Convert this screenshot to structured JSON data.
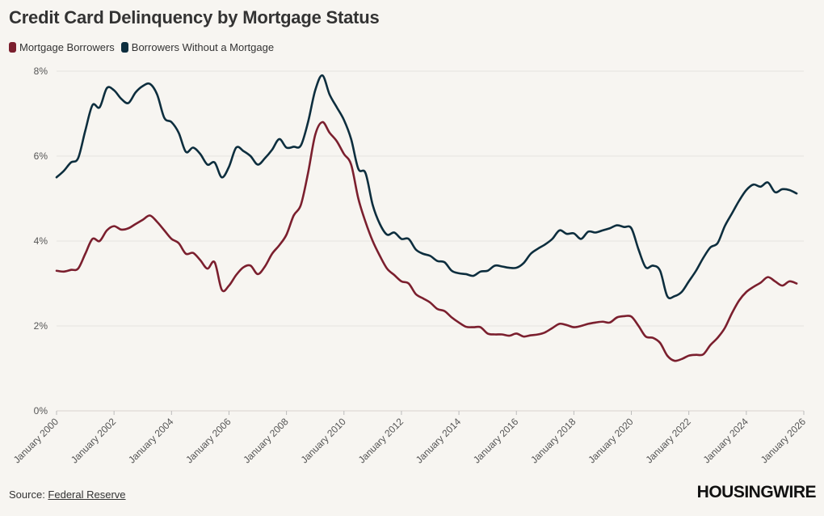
{
  "title": "Credit Card Delinquency by Mortgage Status",
  "source": {
    "prefix": "Source: ",
    "link_text": "Federal Reserve"
  },
  "brand": "HOUSINGWIRE",
  "colors": {
    "mortgage": "#7b1f2e",
    "no_mortgage": "#0d2e3e",
    "grid": "#e6e3de",
    "background": "#f7f5f1"
  },
  "chart_data": {
    "type": "line",
    "title": "Credit Card Delinquency by Mortgage Status",
    "xlabel": "",
    "ylabel": "",
    "xlim": [
      2000.0,
      2026.0
    ],
    "ylim": [
      0,
      8
    ],
    "y_ticks": [
      0,
      2,
      4,
      6,
      8
    ],
    "y_tick_labels": [
      "0%",
      "2%",
      "4%",
      "6%",
      "8%"
    ],
    "x_ticks": [
      2000,
      2002,
      2004,
      2006,
      2008,
      2010,
      2012,
      2014,
      2016,
      2018,
      2020,
      2022,
      2024,
      2026
    ],
    "x_tick_labels": [
      "January 2000",
      "January 2002",
      "January 2004",
      "January 2006",
      "January 2008",
      "January 2010",
      "January 2012",
      "January 2014",
      "January 2016",
      "January 2018",
      "January 2020",
      "January 2022",
      "January 2024",
      "January 2026"
    ],
    "grid": true,
    "legend_position": "top-left",
    "series": [
      {
        "name": "Mortgage Borrowers",
        "color": "#7b1f2e",
        "points": [
          [
            2000.0,
            3.3
          ],
          [
            2000.25,
            3.28
          ],
          [
            2000.5,
            3.32
          ],
          [
            2000.75,
            3.35
          ],
          [
            2001.0,
            3.7
          ],
          [
            2001.25,
            4.05
          ],
          [
            2001.5,
            4.0
          ],
          [
            2001.75,
            4.25
          ],
          [
            2002.0,
            4.35
          ],
          [
            2002.25,
            4.27
          ],
          [
            2002.5,
            4.3
          ],
          [
            2002.75,
            4.4
          ],
          [
            2003.0,
            4.5
          ],
          [
            2003.25,
            4.6
          ],
          [
            2003.5,
            4.45
          ],
          [
            2003.75,
            4.25
          ],
          [
            2004.0,
            4.05
          ],
          [
            2004.25,
            3.95
          ],
          [
            2004.5,
            3.7
          ],
          [
            2004.75,
            3.72
          ],
          [
            2005.0,
            3.55
          ],
          [
            2005.25,
            3.35
          ],
          [
            2005.5,
            3.5
          ],
          [
            2005.75,
            2.85
          ],
          [
            2006.0,
            2.95
          ],
          [
            2006.25,
            3.2
          ],
          [
            2006.5,
            3.38
          ],
          [
            2006.75,
            3.42
          ],
          [
            2007.0,
            3.22
          ],
          [
            2007.25,
            3.4
          ],
          [
            2007.5,
            3.7
          ],
          [
            2007.75,
            3.9
          ],
          [
            2008.0,
            4.15
          ],
          [
            2008.25,
            4.6
          ],
          [
            2008.5,
            4.85
          ],
          [
            2008.75,
            5.6
          ],
          [
            2009.0,
            6.5
          ],
          [
            2009.25,
            6.8
          ],
          [
            2009.5,
            6.55
          ],
          [
            2009.75,
            6.35
          ],
          [
            2010.0,
            6.05
          ],
          [
            2010.25,
            5.8
          ],
          [
            2010.5,
            5.0
          ],
          [
            2010.75,
            4.45
          ],
          [
            2011.0,
            4.0
          ],
          [
            2011.25,
            3.65
          ],
          [
            2011.5,
            3.35
          ],
          [
            2011.75,
            3.2
          ],
          [
            2012.0,
            3.05
          ],
          [
            2012.25,
            3.0
          ],
          [
            2012.5,
            2.75
          ],
          [
            2012.75,
            2.65
          ],
          [
            2013.0,
            2.55
          ],
          [
            2013.25,
            2.4
          ],
          [
            2013.5,
            2.35
          ],
          [
            2013.75,
            2.2
          ],
          [
            2014.0,
            2.08
          ],
          [
            2014.25,
            1.98
          ],
          [
            2014.5,
            1.97
          ],
          [
            2014.75,
            1.97
          ],
          [
            2015.0,
            1.82
          ],
          [
            2015.25,
            1.8
          ],
          [
            2015.5,
            1.8
          ],
          [
            2015.75,
            1.77
          ],
          [
            2016.0,
            1.82
          ],
          [
            2016.25,
            1.75
          ],
          [
            2016.5,
            1.78
          ],
          [
            2016.75,
            1.8
          ],
          [
            2017.0,
            1.85
          ],
          [
            2017.25,
            1.95
          ],
          [
            2017.5,
            2.05
          ],
          [
            2017.75,
            2.02
          ],
          [
            2018.0,
            1.97
          ],
          [
            2018.25,
            2.0
          ],
          [
            2018.5,
            2.05
          ],
          [
            2018.75,
            2.08
          ],
          [
            2019.0,
            2.1
          ],
          [
            2019.25,
            2.08
          ],
          [
            2019.5,
            2.2
          ],
          [
            2019.75,
            2.23
          ],
          [
            2020.0,
            2.22
          ],
          [
            2020.25,
            2.0
          ],
          [
            2020.5,
            1.75
          ],
          [
            2020.75,
            1.72
          ],
          [
            2021.0,
            1.6
          ],
          [
            2021.25,
            1.3
          ],
          [
            2021.5,
            1.18
          ],
          [
            2021.75,
            1.22
          ],
          [
            2022.0,
            1.3
          ],
          [
            2022.25,
            1.32
          ],
          [
            2022.5,
            1.33
          ],
          [
            2022.75,
            1.55
          ],
          [
            2023.0,
            1.72
          ],
          [
            2023.25,
            1.95
          ],
          [
            2023.5,
            2.3
          ],
          [
            2023.75,
            2.6
          ],
          [
            2024.0,
            2.8
          ],
          [
            2024.25,
            2.92
          ],
          [
            2024.5,
            3.02
          ],
          [
            2024.75,
            3.15
          ],
          [
            2025.0,
            3.05
          ],
          [
            2025.25,
            2.95
          ],
          [
            2025.5,
            3.05
          ],
          [
            2025.75,
            3.0
          ]
        ]
      },
      {
        "name": "Borrowers Without a Mortgage",
        "color": "#0d2e3e",
        "points": [
          [
            2000.0,
            5.5
          ],
          [
            2000.25,
            5.65
          ],
          [
            2000.5,
            5.85
          ],
          [
            2000.75,
            5.95
          ],
          [
            2001.0,
            6.6
          ],
          [
            2001.25,
            7.2
          ],
          [
            2001.5,
            7.15
          ],
          [
            2001.75,
            7.6
          ],
          [
            2002.0,
            7.55
          ],
          [
            2002.25,
            7.35
          ],
          [
            2002.5,
            7.25
          ],
          [
            2002.75,
            7.5
          ],
          [
            2003.0,
            7.65
          ],
          [
            2003.25,
            7.7
          ],
          [
            2003.5,
            7.45
          ],
          [
            2003.75,
            6.9
          ],
          [
            2004.0,
            6.8
          ],
          [
            2004.25,
            6.55
          ],
          [
            2004.5,
            6.1
          ],
          [
            2004.75,
            6.2
          ],
          [
            2005.0,
            6.05
          ],
          [
            2005.25,
            5.8
          ],
          [
            2005.5,
            5.85
          ],
          [
            2005.75,
            5.5
          ],
          [
            2006.0,
            5.75
          ],
          [
            2006.25,
            6.2
          ],
          [
            2006.5,
            6.12
          ],
          [
            2006.75,
            6.0
          ],
          [
            2007.0,
            5.8
          ],
          [
            2007.25,
            5.95
          ],
          [
            2007.5,
            6.15
          ],
          [
            2007.75,
            6.4
          ],
          [
            2008.0,
            6.2
          ],
          [
            2008.25,
            6.22
          ],
          [
            2008.5,
            6.25
          ],
          [
            2008.75,
            6.8
          ],
          [
            2009.0,
            7.55
          ],
          [
            2009.25,
            7.9
          ],
          [
            2009.5,
            7.45
          ],
          [
            2009.75,
            7.15
          ],
          [
            2010.0,
            6.85
          ],
          [
            2010.25,
            6.4
          ],
          [
            2010.5,
            5.7
          ],
          [
            2010.75,
            5.6
          ],
          [
            2011.0,
            4.85
          ],
          [
            2011.25,
            4.4
          ],
          [
            2011.5,
            4.15
          ],
          [
            2011.75,
            4.2
          ],
          [
            2012.0,
            4.05
          ],
          [
            2012.25,
            4.05
          ],
          [
            2012.5,
            3.8
          ],
          [
            2012.75,
            3.7
          ],
          [
            2013.0,
            3.65
          ],
          [
            2013.25,
            3.53
          ],
          [
            2013.5,
            3.5
          ],
          [
            2013.75,
            3.3
          ],
          [
            2014.0,
            3.24
          ],
          [
            2014.25,
            3.22
          ],
          [
            2014.5,
            3.18
          ],
          [
            2014.75,
            3.28
          ],
          [
            2015.0,
            3.3
          ],
          [
            2015.25,
            3.42
          ],
          [
            2015.5,
            3.4
          ],
          [
            2015.75,
            3.37
          ],
          [
            2016.0,
            3.37
          ],
          [
            2016.25,
            3.48
          ],
          [
            2016.5,
            3.7
          ],
          [
            2016.75,
            3.82
          ],
          [
            2017.0,
            3.92
          ],
          [
            2017.25,
            4.05
          ],
          [
            2017.5,
            4.25
          ],
          [
            2017.75,
            4.17
          ],
          [
            2018.0,
            4.18
          ],
          [
            2018.25,
            4.05
          ],
          [
            2018.5,
            4.22
          ],
          [
            2018.75,
            4.2
          ],
          [
            2019.0,
            4.25
          ],
          [
            2019.25,
            4.3
          ],
          [
            2019.5,
            4.37
          ],
          [
            2019.75,
            4.33
          ],
          [
            2020.0,
            4.3
          ],
          [
            2020.25,
            3.8
          ],
          [
            2020.5,
            3.38
          ],
          [
            2020.75,
            3.42
          ],
          [
            2021.0,
            3.3
          ],
          [
            2021.25,
            2.7
          ],
          [
            2021.5,
            2.7
          ],
          [
            2021.75,
            2.8
          ],
          [
            2022.0,
            3.05
          ],
          [
            2022.25,
            3.3
          ],
          [
            2022.5,
            3.6
          ],
          [
            2022.75,
            3.85
          ],
          [
            2023.0,
            3.95
          ],
          [
            2023.25,
            4.35
          ],
          [
            2023.5,
            4.65
          ],
          [
            2023.75,
            4.95
          ],
          [
            2024.0,
            5.2
          ],
          [
            2024.25,
            5.33
          ],
          [
            2024.5,
            5.28
          ],
          [
            2024.75,
            5.38
          ],
          [
            2025.0,
            5.15
          ],
          [
            2025.25,
            5.22
          ],
          [
            2025.5,
            5.2
          ],
          [
            2025.75,
            5.12
          ]
        ]
      }
    ]
  }
}
